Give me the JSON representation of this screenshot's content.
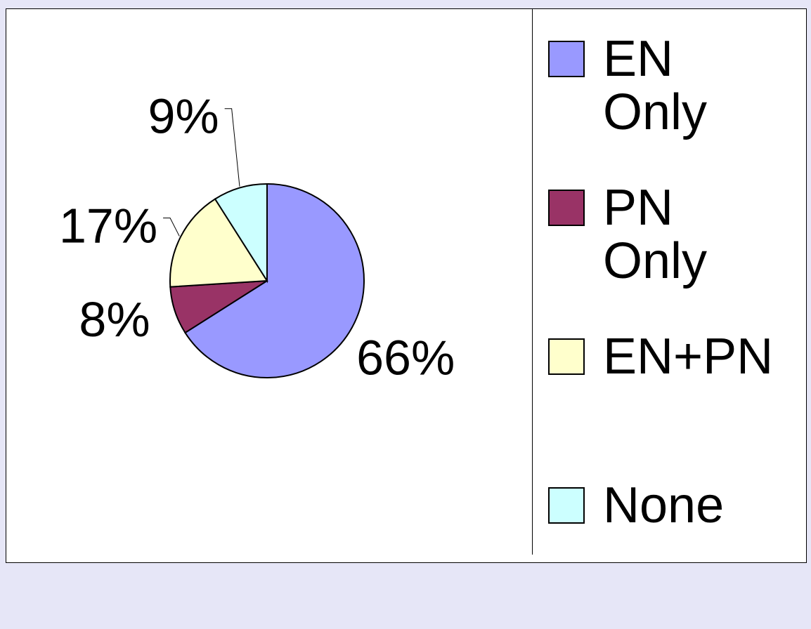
{
  "chart_data": {
    "type": "pie",
    "categories": [
      "EN Only",
      "PN Only",
      "EN+PN",
      "None"
    ],
    "values": [
      66,
      8,
      17,
      9
    ],
    "value_labels": [
      "66%",
      "8%",
      "17%",
      "9%"
    ],
    "colors": [
      "#9999ff",
      "#993366",
      "#ffffcc",
      "#ccffff"
    ],
    "legend": "right"
  }
}
